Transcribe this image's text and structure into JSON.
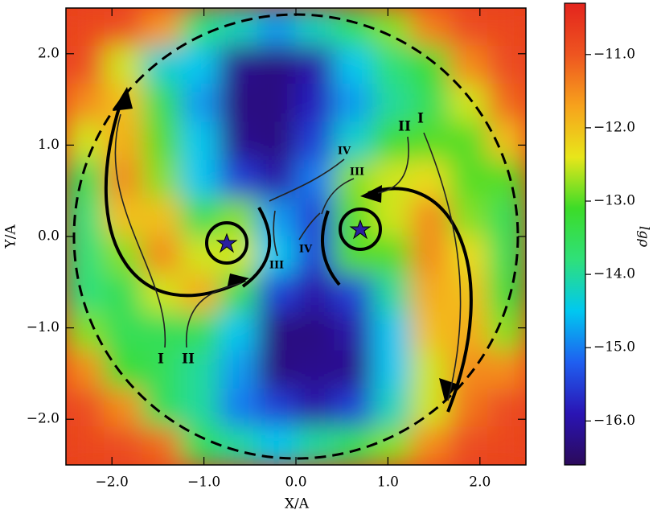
{
  "chart_data": {
    "type": "heatmap",
    "xlabel": "X/A",
    "ylabel": "Y/A",
    "colorbar_label": "lgρ",
    "xlim": [
      -2.5,
      2.5
    ],
    "ylim": [
      -2.5,
      2.5
    ],
    "xticks": [
      {
        "value": -2,
        "label": "−2.0"
      },
      {
        "value": -1,
        "label": "−1.0"
      },
      {
        "value": 0,
        "label": "0.0"
      },
      {
        "value": 1,
        "label": "1.0"
      },
      {
        "value": 2,
        "label": "2.0"
      }
    ],
    "yticks": [
      {
        "value": -2,
        "label": "−2.0"
      },
      {
        "value": -1,
        "label": "−1.0"
      },
      {
        "value": 0,
        "label": "0.0"
      },
      {
        "value": 1,
        "label": "1.0"
      },
      {
        "value": 2,
        "label": "2.0"
      }
    ],
    "zlim": [
      -16.6,
      -10.3
    ],
    "zticks": [
      {
        "value": -11,
        "label": "−11.0"
      },
      {
        "value": -12,
        "label": "−12.0"
      },
      {
        "value": -13,
        "label": "−13.0"
      },
      {
        "value": -14,
        "label": "−14.0"
      },
      {
        "value": -15,
        "label": "−15.0"
      },
      {
        "value": -16,
        "label": "−16.0"
      }
    ],
    "colormap": [
      "#2b0a5a",
      "#2a14b4",
      "#1f5ff0",
      "#00c8f0",
      "#2fe07a",
      "#3cdc28",
      "#e8e61a",
      "#f7a21c",
      "#ee5520",
      "#e3241d"
    ],
    "z": [
      [
        -10.8,
        -10.9,
        -11.6,
        -13.8,
        -14.2,
        -14.8,
        -14.2,
        -13.6,
        -12.8,
        -11.4,
        -10.9,
        -10.8
      ],
      [
        -10.9,
        -12.5,
        -14.3,
        -14.5,
        -16.2,
        -16.3,
        -16.0,
        -14.5,
        -13.8,
        -13.2,
        -11.5,
        -10.9
      ],
      [
        -11.5,
        -12.0,
        -13.5,
        -14.8,
        -16.3,
        -16.3,
        -15.8,
        -14.8,
        -14.0,
        -13.5,
        -12.5,
        -11.2
      ],
      [
        -12.5,
        -11.8,
        -13.0,
        -14.5,
        -16.2,
        -16.3,
        -15.5,
        -14.3,
        -13.2,
        -13.0,
        -13.0,
        -12.0
      ],
      [
        -13.5,
        -11.5,
        -12.8,
        -14.5,
        -15.5,
        -16.0,
        -15.0,
        -12.8,
        -12.5,
        -12.3,
        -13.0,
        -13.0
      ],
      [
        -13.8,
        -12.0,
        -12.0,
        -13.5,
        -12.8,
        -14.8,
        -15.5,
        -13.0,
        -12.5,
        -11.5,
        -12.8,
        -13.5
      ],
      [
        -13.8,
        -12.8,
        -11.5,
        -12.5,
        -12.5,
        -14.5,
        -15.5,
        -13.0,
        -13.0,
        -11.5,
        -12.3,
        -13.5
      ],
      [
        -13.8,
        -13.5,
        -12.5,
        -11.8,
        -13.5,
        -15.5,
        -16.0,
        -15.5,
        -14.0,
        -11.8,
        -12.0,
        -13.3
      ],
      [
        -12.8,
        -13.5,
        -13.5,
        -13.5,
        -14.5,
        -16.3,
        -16.3,
        -16.0,
        -14.5,
        -12.0,
        -11.8,
        -12.8
      ],
      [
        -11.5,
        -13.2,
        -13.5,
        -14.0,
        -14.8,
        -16.3,
        -16.2,
        -16.2,
        -14.5,
        -12.5,
        -11.5,
        -11.5
      ],
      [
        -10.9,
        -11.5,
        -13.5,
        -14.0,
        -15.0,
        -15.5,
        -16.0,
        -15.5,
        -14.2,
        -12.5,
        -11.3,
        -10.9
      ],
      [
        -10.8,
        -10.9,
        -11.2,
        -13.5,
        -14.0,
        -14.5,
        -14.0,
        -13.5,
        -12.8,
        -11.5,
        -10.9,
        -10.8
      ]
    ],
    "annotations": [
      "I",
      "II",
      "III",
      "IV",
      "IV",
      "III",
      "II",
      "I"
    ]
  }
}
